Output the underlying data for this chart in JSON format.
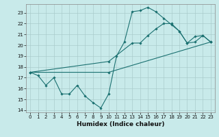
{
  "xlabel": "Humidex (Indice chaleur)",
  "bg_color": "#c8eaea",
  "line_color": "#1a7070",
  "grid_color": "#aacccc",
  "xlim": [
    -0.5,
    23.5
  ],
  "ylim": [
    13.8,
    23.8
  ],
  "yticks": [
    14,
    15,
    16,
    17,
    18,
    19,
    20,
    21,
    22,
    23
  ],
  "xticks": [
    0,
    1,
    2,
    3,
    4,
    5,
    6,
    7,
    8,
    9,
    10,
    11,
    12,
    13,
    14,
    15,
    16,
    17,
    18,
    19,
    20,
    21,
    22,
    23
  ],
  "line1_x": [
    0,
    1,
    2,
    3,
    4,
    5,
    6,
    7,
    8,
    9,
    10,
    11,
    12,
    13,
    14,
    15,
    16,
    17,
    18,
    19,
    20,
    21,
    22,
    23
  ],
  "line1_y": [
    17.5,
    17.2,
    16.3,
    17.0,
    15.5,
    15.5,
    16.3,
    15.3,
    14.7,
    14.2,
    15.5,
    19.0,
    20.3,
    23.1,
    23.2,
    23.5,
    23.1,
    22.5,
    21.9,
    21.3,
    20.2,
    20.8,
    20.9,
    20.3
  ],
  "line2_x": [
    0,
    10,
    13,
    14,
    15,
    16,
    17,
    18,
    19,
    20,
    21,
    22,
    23
  ],
  "line2_y": [
    17.5,
    18.5,
    20.2,
    20.2,
    20.9,
    21.5,
    22.0,
    22.0,
    21.3,
    20.2,
    20.3,
    20.9,
    20.3
  ],
  "line3_x": [
    0,
    10,
    23
  ],
  "line3_y": [
    17.5,
    17.5,
    20.3
  ],
  "tick_fontsize": 5.0,
  "xlabel_fontsize": 6.5,
  "marker_size": 1.8,
  "line_width": 0.8
}
